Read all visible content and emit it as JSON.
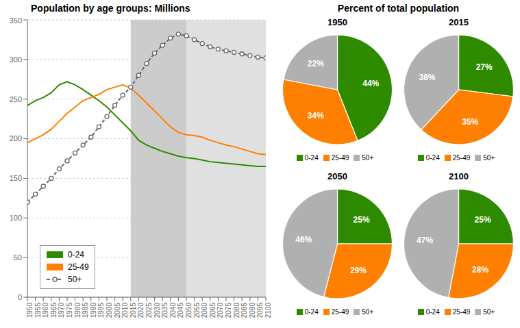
{
  "title": "Percent of total population",
  "chart_data": [
    {
      "type": "line",
      "title": "Population by age groups: Millions",
      "x": [
        1950,
        1955,
        1960,
        1965,
        1970,
        1975,
        1980,
        1985,
        1990,
        1995,
        2000,
        2005,
        2010,
        2015,
        2020,
        2025,
        2030,
        2035,
        2040,
        2045,
        2050,
        2055,
        2060,
        2065,
        2070,
        2075,
        2080,
        2085,
        2090,
        2095,
        2100
      ],
      "series": [
        {
          "name": "0-24",
          "color": "#2e8b00",
          "values": [
            242,
            248,
            252,
            258,
            268,
            272,
            268,
            262,
            255,
            248,
            240,
            230,
            220,
            210,
            198,
            192,
            188,
            184,
            181,
            178,
            176,
            175,
            173,
            171,
            170,
            169,
            168,
            167,
            166,
            165,
            165
          ]
        },
        {
          "name": "25-49",
          "color": "#ff7f00",
          "values": [
            195,
            200,
            205,
            212,
            222,
            232,
            240,
            248,
            252,
            256,
            262,
            265,
            268,
            264,
            255,
            245,
            235,
            225,
            215,
            208,
            205,
            204,
            202,
            198,
            195,
            192,
            190,
            187,
            184,
            181,
            180
          ]
        },
        {
          "name": "50+",
          "color": "#666666",
          "line_style": "dashed",
          "marker": "circle",
          "values": [
            120,
            130,
            140,
            150,
            162,
            172,
            182,
            192,
            202,
            215,
            228,
            242,
            255,
            265,
            280,
            295,
            308,
            318,
            327,
            332,
            330,
            325,
            320,
            316,
            313,
            311,
            309,
            307,
            305,
            303,
            302
          ]
        }
      ],
      "shaded_regions": [
        {
          "start": 2015,
          "end": 2050,
          "color": "#cccccc"
        },
        {
          "start": 2050,
          "end": 2100,
          "color": "#e0e0e0"
        }
      ],
      "xlim": [
        1950,
        2100
      ],
      "xticks": [
        1950,
        1955,
        1960,
        1965,
        1970,
        1975,
        1980,
        1985,
        1990,
        1995,
        2000,
        2005,
        2010,
        2015,
        2020,
        2025,
        2030,
        2035,
        2040,
        2045,
        2050,
        2055,
        2060,
        2065,
        2070,
        2075,
        2080,
        2085,
        2090,
        2095,
        2100
      ],
      "ylim": [
        0,
        350
      ],
      "yticks": [
        0,
        50,
        100,
        150,
        200,
        250,
        300,
        350
      ],
      "grid": true,
      "legend": "lower left"
    },
    {
      "type": "pie",
      "title": "1950",
      "categories": [
        "0-24",
        "25-49",
        "50+"
      ],
      "values": [
        44,
        34,
        22
      ],
      "value_labels": [
        "44%",
        "34%",
        "22%"
      ],
      "colors": [
        "#2e8b00",
        "#ff7f00",
        "#b0b0b0"
      ],
      "data_labels": true,
      "legend": "bottom"
    },
    {
      "type": "pie",
      "title": "2015",
      "categories": [
        "0-24",
        "25-49",
        "50+"
      ],
      "values": [
        27,
        35,
        38
      ],
      "value_labels": [
        "27%",
        "35%",
        "38%"
      ],
      "colors": [
        "#2e8b00",
        "#ff7f00",
        "#b0b0b0"
      ],
      "data_labels": true,
      "legend": "bottom"
    },
    {
      "type": "pie",
      "title": "2050",
      "categories": [
        "0-24",
        "25-49",
        "50+"
      ],
      "values": [
        25,
        29,
        46
      ],
      "value_labels": [
        "25%",
        "29%",
        "46%"
      ],
      "colors": [
        "#2e8b00",
        "#ff7f00",
        "#b0b0b0"
      ],
      "data_labels": true,
      "legend": "bottom"
    },
    {
      "type": "pie",
      "title": "2100",
      "categories": [
        "0-24",
        "25-49",
        "50+"
      ],
      "values": [
        25,
        28,
        47
      ],
      "value_labels": [
        "25%",
        "28%",
        "47%"
      ],
      "colors": [
        "#2e8b00",
        "#ff7f00",
        "#b0b0b0"
      ],
      "data_labels": true,
      "legend": "bottom"
    }
  ]
}
